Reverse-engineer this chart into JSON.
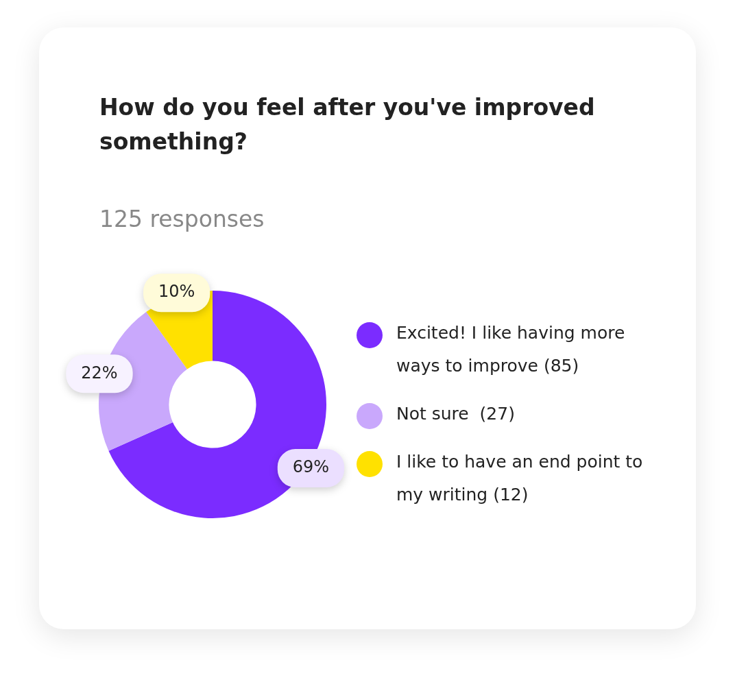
{
  "chart_data": {
    "type": "donut",
    "title": "How do you feel after you've improved something?",
    "subtitle": "125 responses",
    "categories": [
      "Excited! I like having more ways to improve (85)",
      "Not sure  (27)",
      "I like to have an end point to my writing (12)"
    ],
    "values": [
      69,
      22,
      10
    ],
    "colors": [
      "#7b2cff",
      "#c9a8fc",
      "#ffe100"
    ],
    "value_labels": [
      "69%",
      "22%",
      "10%"
    ],
    "legend": "right"
  }
}
